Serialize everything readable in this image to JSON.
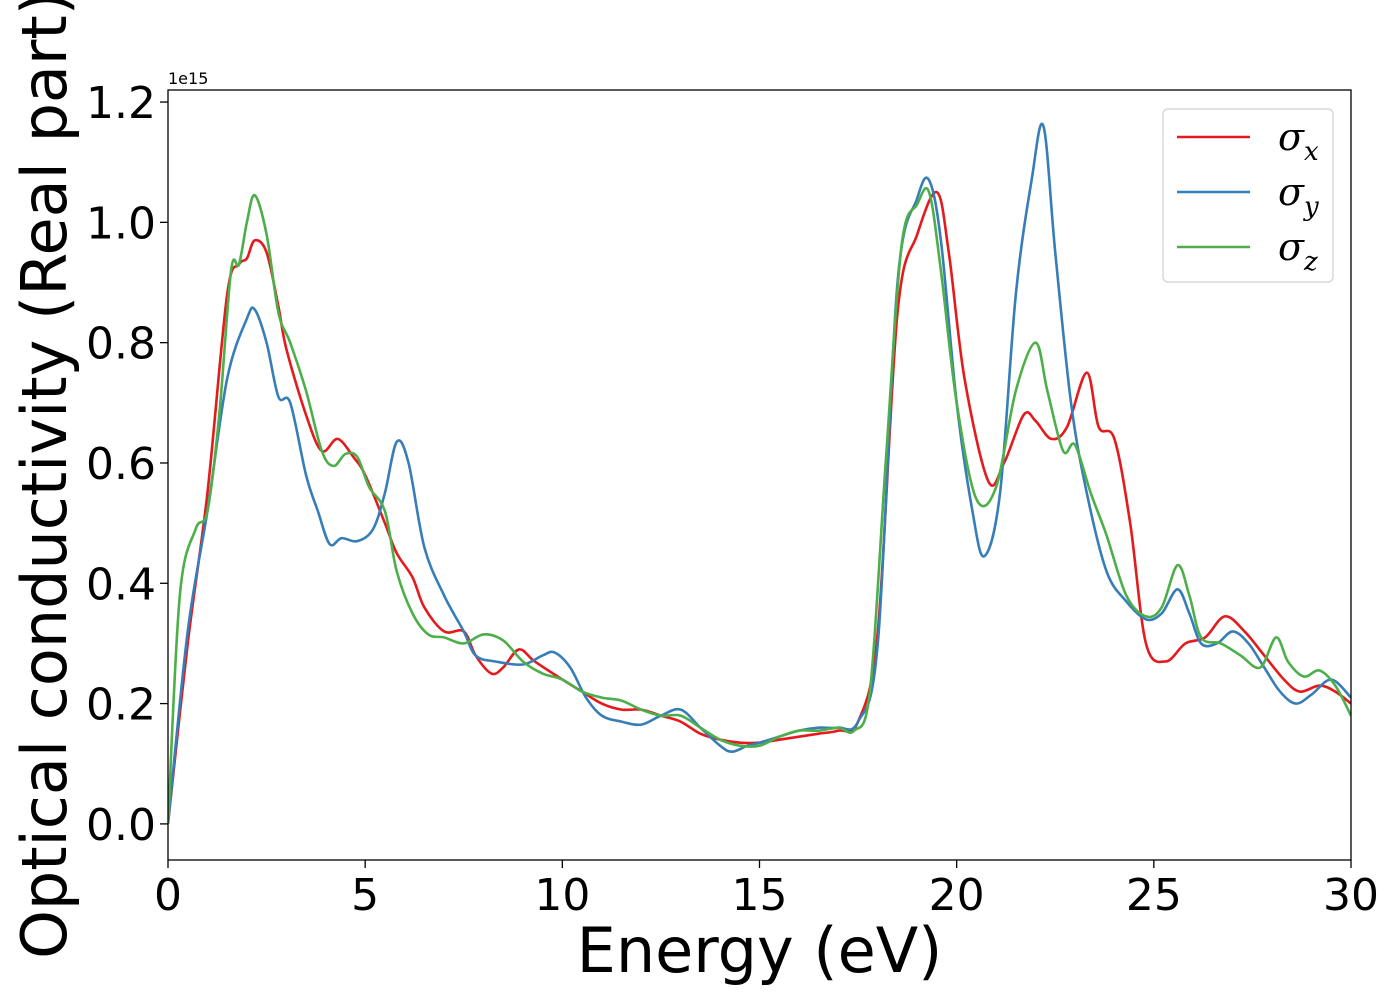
{
  "chart_data": {
    "type": "line",
    "title": "",
    "xlabel": "Energy (eV)",
    "ylabel": "Optical conductivity (Real part)",
    "y_offset_text": "1e15",
    "xlim": [
      0,
      30
    ],
    "ylim": [
      -0.06,
      1.22
    ],
    "x_ticks": [
      0,
      5,
      10,
      15,
      20,
      25,
      30
    ],
    "x_tick_labels": [
      "0",
      "5",
      "10",
      "15",
      "20",
      "25",
      "30"
    ],
    "y_ticks": [
      0.0,
      0.2,
      0.4,
      0.6,
      0.8,
      1.0,
      1.2
    ],
    "y_tick_labels": [
      "0.0",
      "0.2",
      "0.4",
      "0.6",
      "0.8",
      "1.0",
      "1.2"
    ],
    "grid": false,
    "legend_position": "top-right",
    "series": [
      {
        "name": "σx",
        "symbol": "σ",
        "subscript": "x",
        "color": "#e41a1c",
        "points": [
          [
            0,
            0.0
          ],
          [
            0.5,
            0.3
          ],
          [
            1.0,
            0.55
          ],
          [
            1.5,
            0.88
          ],
          [
            1.8,
            0.93
          ],
          [
            2.0,
            0.94
          ],
          [
            2.2,
            0.97
          ],
          [
            2.5,
            0.95
          ],
          [
            2.8,
            0.86
          ],
          [
            3.0,
            0.79
          ],
          [
            3.5,
            0.68
          ],
          [
            3.9,
            0.62
          ],
          [
            4.3,
            0.64
          ],
          [
            4.7,
            0.61
          ],
          [
            5.0,
            0.58
          ],
          [
            5.5,
            0.5
          ],
          [
            5.8,
            0.45
          ],
          [
            6.2,
            0.41
          ],
          [
            6.5,
            0.36
          ],
          [
            7.0,
            0.32
          ],
          [
            7.5,
            0.32
          ],
          [
            7.8,
            0.28
          ],
          [
            8.2,
            0.25
          ],
          [
            8.5,
            0.26
          ],
          [
            8.9,
            0.29
          ],
          [
            9.3,
            0.27
          ],
          [
            10.0,
            0.24
          ],
          [
            10.5,
            0.22
          ],
          [
            11.0,
            0.2
          ],
          [
            11.5,
            0.19
          ],
          [
            12.0,
            0.19
          ],
          [
            12.5,
            0.18
          ],
          [
            13.0,
            0.17
          ],
          [
            13.5,
            0.15
          ],
          [
            14.0,
            0.14
          ],
          [
            14.5,
            0.135
          ],
          [
            15.0,
            0.135
          ],
          [
            15.5,
            0.14
          ],
          [
            16.0,
            0.145
          ],
          [
            16.5,
            0.15
          ],
          [
            17.0,
            0.155
          ],
          [
            17.5,
            0.17
          ],
          [
            18.0,
            0.32
          ],
          [
            18.5,
            0.85
          ],
          [
            19.0,
            0.98
          ],
          [
            19.5,
            1.05
          ],
          [
            19.8,
            0.95
          ],
          [
            20.2,
            0.74
          ],
          [
            20.8,
            0.57
          ],
          [
            21.2,
            0.6
          ],
          [
            21.7,
            0.68
          ],
          [
            22.0,
            0.67
          ],
          [
            22.4,
            0.64
          ],
          [
            22.8,
            0.66
          ],
          [
            23.3,
            0.75
          ],
          [
            23.6,
            0.66
          ],
          [
            24.0,
            0.64
          ],
          [
            24.4,
            0.5
          ],
          [
            24.8,
            0.3
          ],
          [
            25.3,
            0.27
          ],
          [
            25.8,
            0.3
          ],
          [
            26.3,
            0.31
          ],
          [
            26.8,
            0.345
          ],
          [
            27.3,
            0.32
          ],
          [
            27.8,
            0.28
          ],
          [
            28.3,
            0.24
          ],
          [
            28.7,
            0.22
          ],
          [
            29.2,
            0.23
          ],
          [
            29.6,
            0.22
          ],
          [
            30.0,
            0.2
          ]
        ]
      },
      {
        "name": "σy",
        "symbol": "σ",
        "subscript": "y",
        "color": "#377eb8",
        "points": [
          [
            0,
            0.0
          ],
          [
            0.5,
            0.32
          ],
          [
            1.0,
            0.52
          ],
          [
            1.5,
            0.74
          ],
          [
            2.0,
            0.84
          ],
          [
            2.2,
            0.855
          ],
          [
            2.5,
            0.8
          ],
          [
            2.8,
            0.71
          ],
          [
            3.1,
            0.7
          ],
          [
            3.5,
            0.58
          ],
          [
            3.8,
            0.52
          ],
          [
            4.1,
            0.465
          ],
          [
            4.4,
            0.475
          ],
          [
            4.8,
            0.47
          ],
          [
            5.2,
            0.49
          ],
          [
            5.5,
            0.55
          ],
          [
            5.8,
            0.635
          ],
          [
            6.1,
            0.6
          ],
          [
            6.5,
            0.46
          ],
          [
            7.0,
            0.38
          ],
          [
            7.5,
            0.32
          ],
          [
            7.8,
            0.28
          ],
          [
            8.3,
            0.27
          ],
          [
            9.0,
            0.265
          ],
          [
            9.5,
            0.28
          ],
          [
            9.8,
            0.285
          ],
          [
            10.2,
            0.26
          ],
          [
            10.6,
            0.21
          ],
          [
            11.0,
            0.18
          ],
          [
            11.5,
            0.17
          ],
          [
            12.0,
            0.165
          ],
          [
            12.5,
            0.18
          ],
          [
            13.0,
            0.19
          ],
          [
            13.5,
            0.16
          ],
          [
            14.0,
            0.13
          ],
          [
            14.3,
            0.12
          ],
          [
            14.7,
            0.13
          ],
          [
            15.0,
            0.135
          ],
          [
            15.5,
            0.145
          ],
          [
            16.0,
            0.155
          ],
          [
            16.5,
            0.16
          ],
          [
            17.0,
            0.16
          ],
          [
            17.5,
            0.17
          ],
          [
            18.0,
            0.3
          ],
          [
            18.5,
            0.9
          ],
          [
            19.0,
            1.04
          ],
          [
            19.3,
            1.07
          ],
          [
            19.6,
            0.97
          ],
          [
            20.0,
            0.7
          ],
          [
            20.4,
            0.52
          ],
          [
            20.7,
            0.445
          ],
          [
            21.1,
            0.55
          ],
          [
            21.5,
            0.88
          ],
          [
            21.9,
            1.07
          ],
          [
            22.2,
            1.16
          ],
          [
            22.5,
            0.95
          ],
          [
            22.9,
            0.7
          ],
          [
            23.3,
            0.55
          ],
          [
            23.8,
            0.42
          ],
          [
            24.3,
            0.37
          ],
          [
            24.8,
            0.34
          ],
          [
            25.2,
            0.35
          ],
          [
            25.6,
            0.39
          ],
          [
            25.9,
            0.35
          ],
          [
            26.2,
            0.3
          ],
          [
            26.6,
            0.3
          ],
          [
            27.0,
            0.32
          ],
          [
            27.4,
            0.3
          ],
          [
            27.8,
            0.26
          ],
          [
            28.2,
            0.22
          ],
          [
            28.6,
            0.2
          ],
          [
            29.0,
            0.215
          ],
          [
            29.5,
            0.24
          ],
          [
            30.0,
            0.21
          ]
        ]
      },
      {
        "name": "σz",
        "symbol": "σ",
        "subscript": "z",
        "color": "#4daf4a",
        "points": [
          [
            0,
            0.0
          ],
          [
            0.3,
            0.38
          ],
          [
            0.7,
            0.49
          ],
          [
            1.0,
            0.52
          ],
          [
            1.3,
            0.68
          ],
          [
            1.6,
            0.92
          ],
          [
            1.8,
            0.93
          ],
          [
            2.0,
            1.0
          ],
          [
            2.2,
            1.045
          ],
          [
            2.5,
            0.98
          ],
          [
            2.8,
            0.85
          ],
          [
            3.1,
            0.8
          ],
          [
            3.5,
            0.72
          ],
          [
            3.9,
            0.62
          ],
          [
            4.2,
            0.595
          ],
          [
            4.5,
            0.615
          ],
          [
            4.8,
            0.61
          ],
          [
            5.1,
            0.56
          ],
          [
            5.5,
            0.52
          ],
          [
            5.8,
            0.42
          ],
          [
            6.2,
            0.35
          ],
          [
            6.6,
            0.315
          ],
          [
            7.0,
            0.31
          ],
          [
            7.5,
            0.3
          ],
          [
            8.0,
            0.315
          ],
          [
            8.5,
            0.305
          ],
          [
            9.0,
            0.27
          ],
          [
            9.5,
            0.25
          ],
          [
            10.0,
            0.24
          ],
          [
            10.5,
            0.22
          ],
          [
            11.0,
            0.21
          ],
          [
            11.5,
            0.205
          ],
          [
            12.0,
            0.19
          ],
          [
            12.5,
            0.18
          ],
          [
            13.0,
            0.18
          ],
          [
            13.5,
            0.16
          ],
          [
            14.0,
            0.14
          ],
          [
            14.5,
            0.13
          ],
          [
            15.0,
            0.13
          ],
          [
            15.5,
            0.145
          ],
          [
            16.0,
            0.155
          ],
          [
            16.5,
            0.155
          ],
          [
            17.0,
            0.16
          ],
          [
            17.4,
            0.155
          ],
          [
            17.8,
            0.22
          ],
          [
            18.2,
            0.6
          ],
          [
            18.6,
            0.96
          ],
          [
            19.0,
            1.03
          ],
          [
            19.3,
            1.05
          ],
          [
            19.6,
            0.92
          ],
          [
            20.0,
            0.7
          ],
          [
            20.5,
            0.54
          ],
          [
            21.0,
            0.56
          ],
          [
            21.5,
            0.72
          ],
          [
            22.0,
            0.8
          ],
          [
            22.3,
            0.72
          ],
          [
            22.7,
            0.62
          ],
          [
            23.0,
            0.63
          ],
          [
            23.4,
            0.55
          ],
          [
            23.8,
            0.48
          ],
          [
            24.3,
            0.38
          ],
          [
            24.8,
            0.345
          ],
          [
            25.2,
            0.36
          ],
          [
            25.6,
            0.43
          ],
          [
            25.9,
            0.38
          ],
          [
            26.2,
            0.31
          ],
          [
            26.7,
            0.3
          ],
          [
            27.2,
            0.28
          ],
          [
            27.7,
            0.26
          ],
          [
            28.1,
            0.31
          ],
          [
            28.4,
            0.27
          ],
          [
            28.8,
            0.245
          ],
          [
            29.2,
            0.255
          ],
          [
            29.6,
            0.23
          ],
          [
            30.0,
            0.18
          ]
        ]
      }
    ]
  }
}
